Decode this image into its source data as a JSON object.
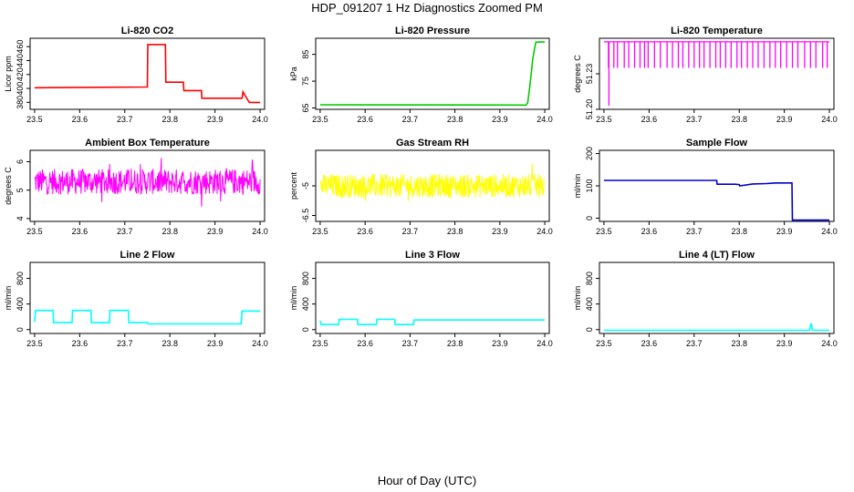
{
  "figure": {
    "title": "HDP_091207  1 Hz Diagnostics Zoomed PM",
    "xlabel": "Hour of Day (UTC)"
  },
  "chart_data": [
    {
      "type": "line",
      "title": "Li-820 CO2",
      "ylabel": "Licor ppm",
      "color": "#ff0000",
      "xlim": [
        23.5,
        24.0
      ],
      "xticks": [
        "23.5",
        "23.6",
        "23.7",
        "23.8",
        "23.9",
        "24.0"
      ],
      "ylim": [
        370,
        472
      ],
      "yticks": [
        380,
        400,
        420,
        440,
        460
      ],
      "series": [
        {
          "x": [
            23.5,
            23.75,
            23.751,
            23.79,
            23.791,
            23.83,
            23.831,
            23.87,
            23.871,
            23.96,
            23.962,
            23.975,
            23.976,
            24.0
          ],
          "y": [
            401,
            402,
            463,
            463,
            409,
            409,
            397,
            397,
            386,
            386,
            395,
            381,
            380,
            380
          ]
        }
      ]
    },
    {
      "type": "line",
      "title": "Li-820 Pressure",
      "ylabel": "kPa",
      "color": "#00cc00",
      "xlim": [
        23.5,
        24.0
      ],
      "xticks": [
        "23.5",
        "23.6",
        "23.7",
        "23.8",
        "23.9",
        "24.0"
      ],
      "ylim": [
        64.5,
        91
      ],
      "yticks": [
        65,
        75,
        85
      ],
      "series": [
        {
          "x": [
            23.5,
            23.95,
            23.958,
            23.962,
            23.966,
            23.97,
            23.973,
            23.976,
            23.98,
            23.99,
            24.0
          ],
          "y": [
            66.2,
            66.1,
            66.0,
            67,
            72,
            78,
            83,
            86,
            89.5,
            89.6,
            89.6
          ]
        }
      ]
    },
    {
      "type": "line",
      "title": "Li-820 Temperature",
      "ylabel": "degrees C",
      "color": "#ff00ff",
      "xlim": [
        23.5,
        24.0
      ],
      "xticks": [
        "23.5",
        "23.6",
        "23.7",
        "23.8",
        "23.9",
        "24.0"
      ],
      "ylim": [
        51.2,
        51.26
      ],
      "yticks": [
        51.2,
        51.23
      ],
      "baseline": 51.257,
      "dip_level": 51.235,
      "dips": [
        23.51,
        23.522,
        23.53,
        23.545,
        23.555,
        23.568,
        23.58,
        23.59,
        23.598,
        23.612,
        23.625,
        23.64,
        23.652,
        23.665,
        23.675,
        23.688,
        23.7,
        23.712,
        23.722,
        23.735,
        23.748,
        23.758,
        23.77,
        23.782,
        23.795,
        23.805,
        23.818,
        23.83,
        23.842,
        23.855,
        23.868,
        23.88,
        23.892,
        23.905,
        23.918,
        23.93,
        23.945,
        23.958,
        23.97,
        23.985,
        23.995
      ],
      "spike": {
        "x": 23.511,
        "y": 51.203
      }
    },
    {
      "type": "line",
      "title": "Ambient Box Temperature",
      "ylabel": "degrees C",
      "color": "#ff00ff",
      "xlim": [
        23.5,
        24.0
      ],
      "xticks": [
        "23.5",
        "23.6",
        "23.7",
        "23.8",
        "23.9",
        "24.0"
      ],
      "ylim": [
        3.9,
        6.4
      ],
      "yticks": [
        4.0,
        5.0,
        6.0
      ],
      "mean": 5.3,
      "noise_amplitude": 0.45
    },
    {
      "type": "line",
      "title": "Gas Stream RH",
      "ylabel": "percent",
      "color": "#ffff00",
      "xlim": [
        23.5,
        24.0
      ],
      "xticks": [
        "23.5",
        "23.6",
        "23.7",
        "23.8",
        "23.9",
        "24.0"
      ],
      "ylim": [
        -6.8,
        -3.2
      ],
      "yticks": [
        -6.5,
        -5.0
      ],
      "mean": -5.0,
      "noise_amplitude": 0.6
    },
    {
      "type": "line",
      "title": "Sample Flow",
      "ylabel": "ml/min",
      "color": "#0000cc",
      "xlim": [
        23.5,
        24.0
      ],
      "xticks": [
        "23.5",
        "23.6",
        "23.7",
        "23.8",
        "23.9",
        "24.0"
      ],
      "ylim": [
        -10,
        210
      ],
      "yticks": [
        0,
        100,
        200
      ],
      "series": [
        {
          "x": [
            23.5,
            23.75,
            23.751,
            23.79,
            23.8,
            23.801,
            23.83,
            23.86,
            23.88,
            23.881,
            23.917,
            23.918,
            24.0
          ],
          "y": [
            117,
            117,
            105,
            105,
            104,
            100,
            106,
            107,
            109,
            109,
            109,
            -6,
            -6
          ]
        }
      ]
    },
    {
      "type": "line",
      "title": "Line 2 Flow",
      "ylabel": "ml/min",
      "color": "#00ffff",
      "xlim": [
        23.5,
        24.0
      ],
      "xticks": [
        "23.5",
        "23.6",
        "23.7",
        "23.8",
        "23.9",
        "24.0"
      ],
      "ylim": [
        -60,
        1050
      ],
      "yticks": [
        0,
        400,
        800
      ],
      "series": [
        {
          "x": [
            23.5,
            23.502,
            23.541,
            23.542,
            23.583,
            23.584,
            23.625,
            23.626,
            23.666,
            23.667,
            23.708,
            23.709,
            23.75,
            23.751,
            23.958,
            23.96,
            24.0
          ],
          "y": [
            120,
            300,
            300,
            110,
            110,
            300,
            300,
            110,
            110,
            300,
            300,
            110,
            110,
            90,
            90,
            290,
            290
          ]
        }
      ]
    },
    {
      "type": "line",
      "title": "Line 3 Flow",
      "ylabel": "ml/min",
      "color": "#00ffff",
      "xlim": [
        23.5,
        24.0
      ],
      "xticks": [
        "23.5",
        "23.6",
        "23.7",
        "23.8",
        "23.9",
        "24.0"
      ],
      "ylim": [
        -60,
        1050
      ],
      "yticks": [
        0,
        400,
        800
      ],
      "series": [
        {
          "x": [
            23.5,
            23.502,
            23.541,
            23.542,
            23.583,
            23.584,
            23.625,
            23.626,
            23.666,
            23.667,
            23.708,
            23.709,
            24.0
          ],
          "y": [
            140,
            80,
            80,
            160,
            160,
            80,
            80,
            160,
            160,
            80,
            80,
            150,
            150
          ]
        }
      ]
    },
    {
      "type": "line",
      "title": "Line 4 (LT) Flow",
      "ylabel": "ml/min",
      "color": "#00ffff",
      "xlim": [
        23.5,
        24.0
      ],
      "xticks": [
        "23.5",
        "23.6",
        "23.7",
        "23.8",
        "23.9",
        "24.0"
      ],
      "ylim": [
        -60,
        1050
      ],
      "yticks": [
        0,
        400,
        800
      ],
      "series": [
        {
          "x": [
            23.5,
            23.956,
            23.958,
            23.96,
            23.962,
            23.964,
            24.0
          ],
          "y": [
            -10,
            -10,
            60,
            100,
            -10,
            -10,
            -10
          ]
        }
      ]
    }
  ]
}
